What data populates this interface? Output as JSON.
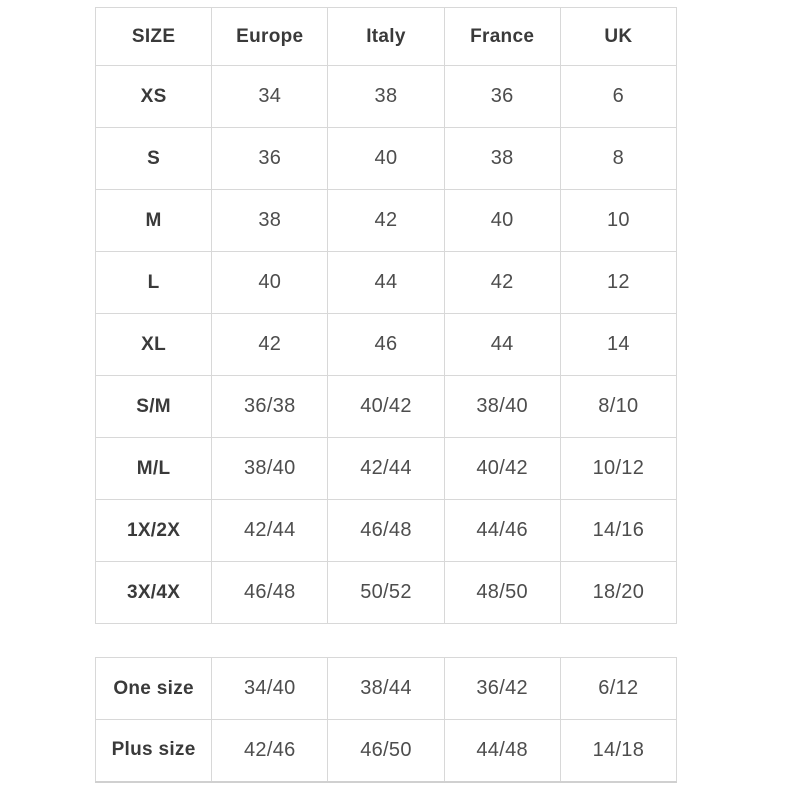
{
  "chart_data": [
    {
      "type": "table",
      "name": "size_conversion_chart",
      "columns": [
        "SIZE",
        "Europe",
        "Italy",
        "France",
        "UK"
      ],
      "rows": [
        [
          "XS",
          "34",
          "38",
          "36",
          "6"
        ],
        [
          "S",
          "36",
          "40",
          "38",
          "8"
        ],
        [
          "M",
          "38",
          "42",
          "40",
          "10"
        ],
        [
          "L",
          "40",
          "44",
          "42",
          "12"
        ],
        [
          "XL",
          "42",
          "46",
          "44",
          "14"
        ],
        [
          "S/M",
          "36/38",
          "40/42",
          "38/40",
          "8/10"
        ],
        [
          "M/L",
          "38/40",
          "42/44",
          "40/42",
          "10/12"
        ],
        [
          "1X/2X",
          "42/44",
          "46/48",
          "44/46",
          "14/16"
        ],
        [
          "3X/4X",
          "46/48",
          "50/52",
          "48/50",
          "18/20"
        ]
      ]
    },
    {
      "type": "table",
      "name": "special_sizes_chart",
      "columns": [],
      "rows": [
        [
          "One size",
          "34/40",
          "38/44",
          "36/42",
          "6/12"
        ],
        [
          "Plus size",
          "42/46",
          "46/50",
          "44/48",
          "14/18"
        ]
      ]
    }
  ],
  "colors": {
    "border": "#d8d8d8",
    "header_text": "#3a3a3a",
    "value_text": "#4d4d4d",
    "background": "#ffffff"
  }
}
